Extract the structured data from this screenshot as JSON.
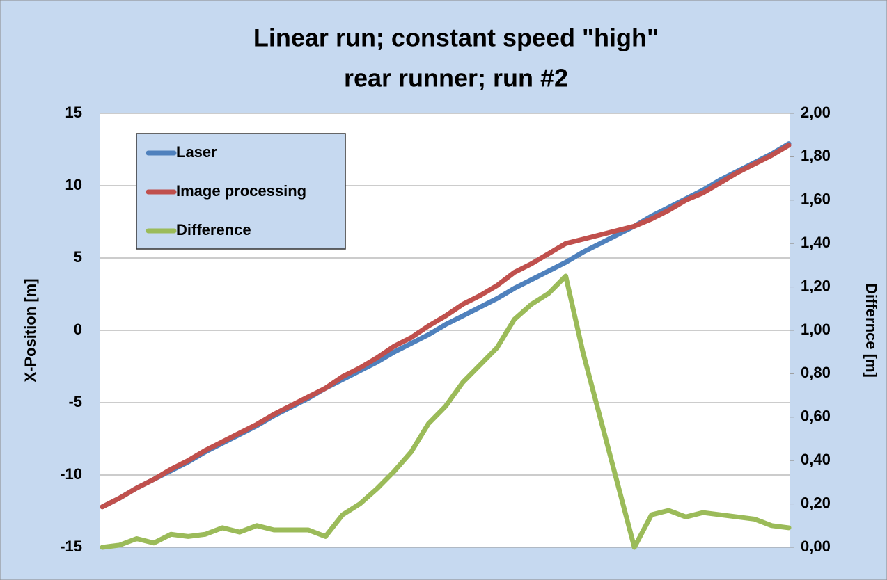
{
  "chart_data": {
    "type": "line",
    "title": "Linear run; constant speed \"high\"",
    "subtitle": "rear runner; run #2",
    "ylabel": "X-Position [m]",
    "y2label": "Differnce [m]",
    "ylim": [
      -15,
      15
    ],
    "yticks": [
      -15,
      -10,
      -5,
      0,
      5,
      10,
      15
    ],
    "y2lim": [
      0,
      2
    ],
    "y2ticks": [
      {
        "value": 0,
        "label": "0,00"
      },
      {
        "value": 0.2,
        "label": "0,20"
      },
      {
        "value": 0.4,
        "label": "0,40"
      },
      {
        "value": 0.6,
        "label": "0,60"
      },
      {
        "value": 0.8,
        "label": "0,80"
      },
      {
        "value": 1.0,
        "label": "1,00"
      },
      {
        "value": 1.2,
        "label": "1,20"
      },
      {
        "value": 1.4,
        "label": "1,40"
      },
      {
        "value": 1.6,
        "label": "1,60"
      },
      {
        "value": 1.8,
        "label": "1,80"
      },
      {
        "value": 2.0,
        "label": "2,00"
      }
    ],
    "grid": true,
    "legend": "upper-left",
    "series": [
      {
        "name": "Laser",
        "color": "#4f81bd",
        "values": [
          -12.2,
          -11.6,
          -10.9,
          -10.3,
          -9.7,
          -9.1,
          -8.4,
          -7.8,
          -7.2,
          -6.6,
          -5.9,
          -5.3,
          -4.7,
          -4.0,
          -3.4,
          -2.8,
          -2.2,
          -1.5,
          -0.9,
          -0.3,
          0.4,
          1.0,
          1.6,
          2.2,
          2.9,
          3.5,
          4.1,
          4.7,
          5.4,
          6.0,
          6.6,
          7.2,
          7.9,
          8.5,
          9.1,
          9.7,
          10.4,
          11.0,
          11.6,
          12.2,
          12.9
        ]
      },
      {
        "name": "Image processing",
        "color": "#c0504d",
        "values": [
          -12.2,
          -11.6,
          -10.9,
          -10.3,
          -9.6,
          -9.0,
          -8.3,
          -7.7,
          -7.1,
          -6.5,
          -5.8,
          -5.2,
          -4.6,
          -4.0,
          -3.2,
          -2.6,
          -1.9,
          -1.1,
          -0.5,
          0.3,
          1.0,
          1.8,
          2.4,
          3.1,
          4.0,
          4.6,
          5.3,
          6.0,
          6.3,
          6.6,
          6.9,
          7.2,
          7.7,
          8.3,
          9.0,
          9.5,
          10.2,
          10.9,
          11.5,
          12.1,
          12.8
        ]
      },
      {
        "name": "Difference",
        "color": "#9bbb59",
        "axis": "y2",
        "values": [
          0.0,
          0.01,
          0.04,
          0.02,
          0.06,
          0.05,
          0.06,
          0.09,
          0.07,
          0.1,
          0.08,
          0.08,
          0.08,
          0.05,
          0.15,
          0.2,
          0.27,
          0.35,
          0.44,
          0.57,
          0.65,
          0.76,
          0.84,
          0.92,
          1.05,
          1.12,
          1.17,
          1.25,
          0.9,
          0.6,
          0.3,
          0.0,
          0.15,
          0.17,
          0.14,
          0.16,
          0.15,
          0.14,
          0.13,
          0.1,
          0.09
        ]
      }
    ]
  }
}
